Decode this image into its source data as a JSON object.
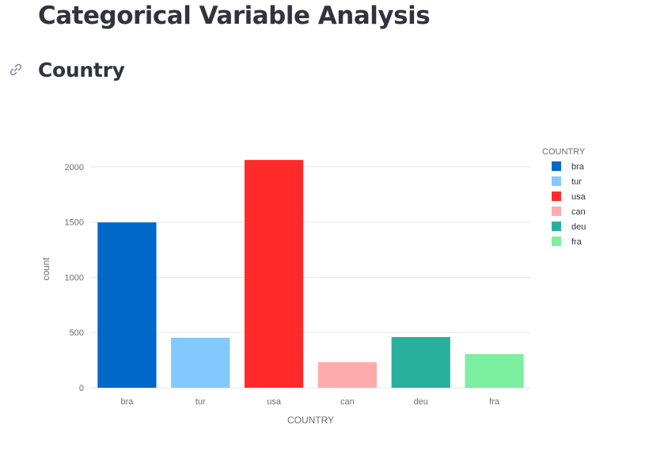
{
  "page": {
    "title": "Categorical Variable Analysis",
    "section_title": "Country",
    "link_icon": "link-icon"
  },
  "chart_data": {
    "type": "bar",
    "categories": [
      "bra",
      "tur",
      "usa",
      "can",
      "deu",
      "fra"
    ],
    "values": [
      1497,
      453,
      2063,
      232,
      459,
      305
    ],
    "colors": [
      "#0068c9",
      "#83c9ff",
      "#ff2b2b",
      "#ffabab",
      "#29b09d",
      "#7defa1"
    ],
    "xlabel": "COUNTRY",
    "ylabel": "count",
    "ylim": [
      0,
      2150
    ],
    "yticks": [
      0,
      500,
      1000,
      1500,
      2000
    ],
    "grid": true,
    "legend": {
      "title": "COUNTRY",
      "placement": "top-right",
      "entries": [
        "bra",
        "tur",
        "usa",
        "can",
        "deu",
        "fra"
      ]
    }
  }
}
